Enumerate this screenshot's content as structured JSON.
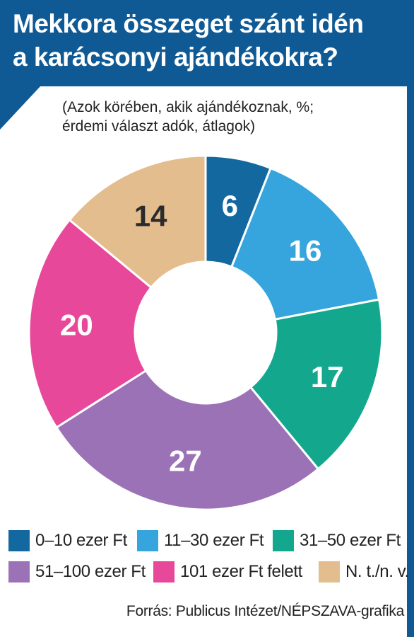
{
  "title_lines": [
    "Mekkora összeget szánt idén",
    "a karácsonyi ajándékokra?"
  ],
  "subtitle_lines": [
    "(Azok körében, akik ajándékoznak, %;",
    "érdemi választ adók, átlagok)"
  ],
  "source": "Forrás: Publicus Intézet/NÉPSZAVA-grafika",
  "chart_data": {
    "type": "pie",
    "donut": true,
    "categories": [
      "0–10 ezer Ft",
      "11–30 ezer Ft",
      "31–50 ezer Ft",
      "51–100 ezer Ft",
      "101 ezer Ft felett",
      "N. t./n. v."
    ],
    "values": [
      6,
      16,
      17,
      27,
      20,
      14
    ],
    "labels": [
      "6",
      "16",
      "17",
      "27",
      "20",
      "14"
    ],
    "colors": [
      "#12689f",
      "#36a5de",
      "#13a88e",
      "#9b72b5",
      "#e8489a",
      "#e4bd8f"
    ],
    "label_colors": [
      "#ffffff",
      "#ffffff",
      "#ffffff",
      "#ffffff",
      "#ffffff",
      "#2b2b2b"
    ],
    "legend_placement": "bottom"
  },
  "brand_colors": {
    "header": "#0f5a95"
  }
}
